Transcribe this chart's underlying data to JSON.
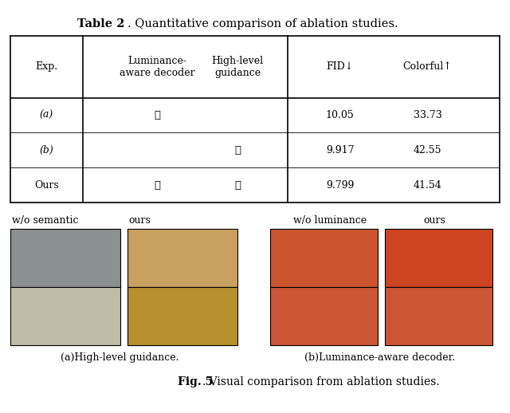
{
  "title_bold": "Table 2",
  "title_normal": ". Quantitative comparison of ablation studies.",
  "table": {
    "col_headers": [
      "Exp.",
      "Luminance-\naware decoder",
      "High-level\nguidance",
      "FID↓",
      "Colorful↑"
    ],
    "rows": [
      [
        "(a)",
        "✓",
        "",
        "10.05",
        "33.73"
      ],
      [
        "(b)",
        "",
        "✓",
        "9.917",
        "42.55"
      ],
      [
        "Ours",
        "✓",
        "✓",
        "9.799",
        "41.54"
      ]
    ]
  },
  "labels_left": [
    "w/o semantic",
    "ours"
  ],
  "labels_right": [
    "w/o luminance",
    "ours"
  ],
  "caption_left": "(a)High-level guidance.",
  "caption_right": "(b)Luminance-aware decoder.",
  "fig_caption_bold": "Fig. 5",
  "fig_caption_normal": ". Visual comparison from ablation studies.",
  "bg_color": "#ffffff",
  "panel_colors": {
    "sofa_gray": "#8B9090",
    "sofa_warm": "#C8A060",
    "fruit_gray": "#C0BCAA",
    "fruit_color": "#B89030",
    "sign_top_left": "#CC5530",
    "sign_top_right": "#CC4422",
    "sign_bot_left": "#CC5533",
    "sign_bot_right": "#CC5533"
  }
}
